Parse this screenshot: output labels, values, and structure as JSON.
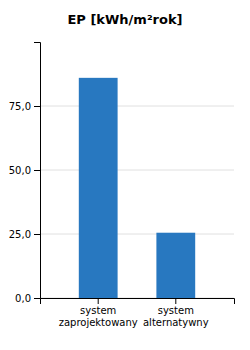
{
  "chart_data": {
    "type": "bar",
    "title": "EP [kWh/m²rok]",
    "categories": [
      "system\nzaprojektowany",
      "system\nalternatywny"
    ],
    "values": [
      86.0,
      25.5
    ],
    "color": "#2878c0",
    "ylim": [
      0,
      100
    ],
    "yticks": [
      {
        "value": 0.0,
        "label": "0,0"
      },
      {
        "value": 25.0,
        "label": "25,0"
      },
      {
        "value": 50.0,
        "label": "50,0"
      },
      {
        "value": 75.0,
        "label": "75,0"
      }
    ],
    "grid": true
  }
}
